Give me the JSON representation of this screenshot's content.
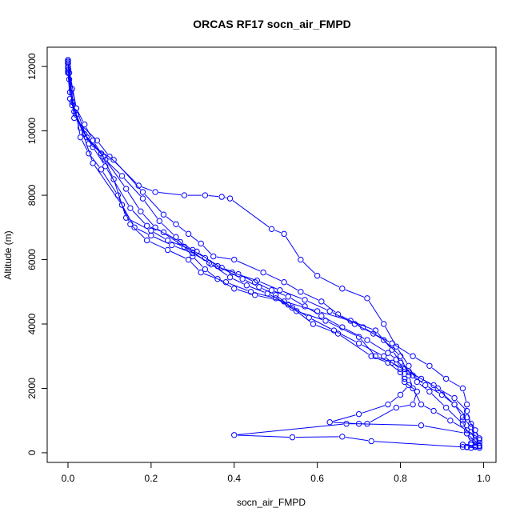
{
  "chart_data": {
    "type": "line",
    "title": "ORCAS RF17 socn_air_FMPD",
    "xlabel": "socn_air_FMPD",
    "ylabel": "Altitude (m)",
    "xlim": [
      -0.05,
      1.03
    ],
    "ylim": [
      -300,
      12600
    ],
    "xticks": [
      0.0,
      0.2,
      0.4,
      0.6,
      0.8,
      1.0
    ],
    "xtick_labels": [
      "0.0",
      "0.2",
      "0.4",
      "0.6",
      "0.8",
      "1.0"
    ],
    "yticks": [
      0,
      2000,
      4000,
      6000,
      8000,
      10000,
      12000
    ],
    "ytick_labels": [
      "0",
      "2000",
      "4000",
      "6000",
      "8000",
      "10000",
      "12000"
    ],
    "grid": false,
    "legend": "none",
    "line_color": "#0000ff",
    "marker": "open-circle",
    "series": [
      {
        "values": [
          [
            0.0,
            12200
          ],
          [
            0.0,
            12150
          ],
          [
            0.0,
            12100
          ],
          [
            0.001,
            11900
          ],
          [
            0.003,
            11800
          ],
          [
            0.01,
            11300
          ],
          [
            0.02,
            10700
          ],
          [
            0.04,
            10200
          ],
          [
            0.06,
            9700
          ],
          [
            0.09,
            9100
          ],
          [
            0.13,
            8600
          ],
          [
            0.18,
            7900
          ],
          [
            0.22,
            7200
          ],
          [
            0.26,
            6700
          ],
          [
            0.3,
            6100
          ],
          [
            0.33,
            5700
          ],
          [
            0.36,
            5400
          ],
          [
            0.4,
            5100
          ],
          [
            0.45,
            4900
          ],
          [
            0.52,
            4700
          ],
          [
            0.6,
            4400
          ],
          [
            0.68,
            4100
          ],
          [
            0.74,
            3800
          ],
          [
            0.78,
            3200
          ],
          [
            0.8,
            2800
          ],
          [
            0.83,
            2400
          ],
          [
            0.86,
            2100
          ],
          [
            0.9,
            1800
          ],
          [
            0.93,
            1500
          ],
          [
            0.95,
            1100
          ],
          [
            0.97,
            800
          ],
          [
            0.98,
            400
          ],
          [
            0.99,
            200
          ],
          [
            0.98,
            180
          ],
          [
            0.95,
            250
          ]
        ]
      },
      {
        "values": [
          [
            0.0,
            11850
          ],
          [
            0.005,
            11200
          ],
          [
            0.02,
            10500
          ],
          [
            0.03,
            9800
          ],
          [
            0.05,
            9300
          ],
          [
            0.08,
            8800
          ],
          [
            0.12,
            8000
          ],
          [
            0.15,
            7100
          ],
          [
            0.19,
            6600
          ],
          [
            0.24,
            6300
          ],
          [
            0.29,
            6000
          ],
          [
            0.32,
            5600
          ],
          [
            0.38,
            5300
          ],
          [
            0.44,
            5000
          ],
          [
            0.5,
            4800
          ],
          [
            0.55,
            4400
          ],
          [
            0.62,
            4100
          ],
          [
            0.7,
            3600
          ],
          [
            0.74,
            3000
          ],
          [
            0.78,
            2800
          ],
          [
            0.82,
            2500
          ],
          [
            0.88,
            2100
          ],
          [
            0.93,
            1500
          ],
          [
            0.96,
            1100
          ],
          [
            0.98,
            700
          ],
          [
            0.99,
            400
          ],
          [
            0.97,
            250
          ],
          [
            0.96,
            180
          ]
        ]
      },
      {
        "values": [
          [
            0.0,
            12200
          ],
          [
            0.003,
            11600
          ],
          [
            0.015,
            10400
          ],
          [
            0.07,
            9700
          ],
          [
            0.1,
            9200
          ],
          [
            0.17,
            8300
          ],
          [
            0.21,
            8100
          ],
          [
            0.28,
            8000
          ],
          [
            0.33,
            8000
          ],
          [
            0.37,
            7950
          ],
          [
            0.39,
            7900
          ],
          [
            0.49,
            6950
          ],
          [
            0.52,
            6800
          ],
          [
            0.56,
            6000
          ],
          [
            0.6,
            5500
          ],
          [
            0.66,
            5100
          ],
          [
            0.72,
            4800
          ],
          [
            0.76,
            4000
          ],
          [
            0.79,
            3300
          ],
          [
            0.82,
            2700
          ],
          [
            0.84,
            2200
          ],
          [
            0.87,
            1900
          ],
          [
            0.91,
            1400
          ],
          [
            0.95,
            900
          ],
          [
            0.97,
            500
          ],
          [
            0.99,
            220
          ]
        ]
      },
      {
        "values": [
          [
            0.0,
            12100
          ],
          [
            0.02,
            10700
          ],
          [
            0.05,
            9600
          ],
          [
            0.11,
            9100
          ],
          [
            0.18,
            8100
          ],
          [
            0.23,
            7400
          ],
          [
            0.26,
            7100
          ],
          [
            0.29,
            6800
          ],
          [
            0.32,
            6500
          ],
          [
            0.35,
            6100
          ],
          [
            0.4,
            6000
          ],
          [
            0.47,
            5600
          ],
          [
            0.52,
            5300
          ],
          [
            0.56,
            5000
          ],
          [
            0.61,
            4700
          ],
          [
            0.65,
            4300
          ],
          [
            0.71,
            3900
          ],
          [
            0.76,
            3500
          ],
          [
            0.8,
            3000
          ],
          [
            0.82,
            2400
          ],
          [
            0.83,
            2000
          ],
          [
            0.85,
            1500
          ],
          [
            0.88,
            1300
          ],
          [
            0.92,
            1000
          ],
          [
            0.96,
            700
          ],
          [
            0.99,
            450
          ],
          [
            0.98,
            200
          ]
        ]
      },
      {
        "values": [
          [
            0.0,
            11950
          ],
          [
            0.01,
            10900
          ],
          [
            0.06,
            9000
          ],
          [
            0.13,
            7700
          ],
          [
            0.16,
            7000
          ],
          [
            0.2,
            6750
          ],
          [
            0.25,
            6450
          ],
          [
            0.3,
            6200
          ],
          [
            0.34,
            5900
          ],
          [
            0.39,
            5450
          ],
          [
            0.43,
            5200
          ],
          [
            0.48,
            4950
          ],
          [
            0.53,
            4600
          ],
          [
            0.58,
            4200
          ],
          [
            0.64,
            3800
          ],
          [
            0.7,
            3400
          ],
          [
            0.76,
            3000
          ],
          [
            0.8,
            2600
          ],
          [
            0.81,
            2300
          ],
          [
            0.82,
            2100
          ],
          [
            0.8,
            1800
          ],
          [
            0.77,
            1500
          ],
          [
            0.7,
            1200
          ],
          [
            0.63,
            950
          ],
          [
            0.7,
            900
          ],
          [
            0.85,
            850
          ],
          [
            0.96,
            600
          ],
          [
            0.98,
            350
          ]
        ]
      },
      {
        "values": [
          [
            0.0,
            12000
          ],
          [
            0.01,
            10800
          ],
          [
            0.04,
            9900
          ],
          [
            0.08,
            9300
          ],
          [
            0.11,
            8500
          ],
          [
            0.14,
            7300
          ],
          [
            0.2,
            6900
          ],
          [
            0.24,
            6600
          ],
          [
            0.31,
            6250
          ],
          [
            0.36,
            5800
          ],
          [
            0.42,
            5400
          ],
          [
            0.46,
            5150
          ],
          [
            0.5,
            4900
          ],
          [
            0.54,
            4500
          ],
          [
            0.59,
            4000
          ],
          [
            0.65,
            3700
          ],
          [
            0.73,
            3000
          ],
          [
            0.77,
            2800
          ],
          [
            0.8,
            2500
          ],
          [
            0.81,
            2200
          ],
          [
            0.84,
            1900
          ],
          [
            0.83,
            1500
          ],
          [
            0.79,
            1400
          ],
          [
            0.72,
            900
          ],
          [
            0.67,
            900
          ],
          [
            0.4,
            550
          ],
          [
            0.54,
            480
          ],
          [
            0.66,
            500
          ],
          [
            0.73,
            360
          ],
          [
            0.96,
            170
          ],
          [
            0.99,
            150
          ]
        ]
      },
      {
        "values": [
          [
            0.0,
            11800
          ],
          [
            0.005,
            11000
          ],
          [
            0.03,
            10100
          ],
          [
            0.06,
            9500
          ],
          [
            0.09,
            8900
          ],
          [
            0.15,
            7600
          ],
          [
            0.19,
            7050
          ],
          [
            0.23,
            6850
          ],
          [
            0.27,
            6550
          ],
          [
            0.3,
            6300
          ],
          [
            0.33,
            6050
          ],
          [
            0.37,
            5750
          ],
          [
            0.41,
            5550
          ],
          [
            0.45,
            5300
          ],
          [
            0.49,
            5050
          ],
          [
            0.53,
            4850
          ],
          [
            0.57,
            4550
          ],
          [
            0.61,
            4250
          ],
          [
            0.66,
            3900
          ],
          [
            0.72,
            3500
          ],
          [
            0.77,
            3100
          ],
          [
            0.79,
            2900
          ],
          [
            0.81,
            2600
          ],
          [
            0.85,
            2300
          ],
          [
            0.89,
            2000
          ],
          [
            0.93,
            1700
          ],
          [
            0.96,
            1300
          ],
          [
            0.97,
            900
          ],
          [
            0.98,
            550
          ],
          [
            0.99,
            300
          ],
          [
            0.97,
            150
          ]
        ]
      },
      {
        "values": [
          [
            0.0,
            12150
          ],
          [
            0.015,
            10600
          ],
          [
            0.045,
            9800
          ],
          [
            0.085,
            9200
          ],
          [
            0.14,
            8200
          ],
          [
            0.175,
            7500
          ],
          [
            0.21,
            7000
          ],
          [
            0.28,
            6400
          ],
          [
            0.345,
            5850
          ],
          [
            0.395,
            5600
          ],
          [
            0.455,
            5350
          ],
          [
            0.51,
            5050
          ],
          [
            0.57,
            4750
          ],
          [
            0.63,
            4400
          ],
          [
            0.69,
            4000
          ],
          [
            0.735,
            3700
          ],
          [
            0.78,
            3400
          ],
          [
            0.83,
            3000
          ],
          [
            0.87,
            2700
          ],
          [
            0.91,
            2300
          ],
          [
            0.95,
            2000
          ],
          [
            0.96,
            1500
          ],
          [
            0.95,
            1000
          ],
          [
            0.96,
            600
          ],
          [
            0.97,
            300
          ],
          [
            0.95,
            180
          ]
        ]
      }
    ]
  }
}
